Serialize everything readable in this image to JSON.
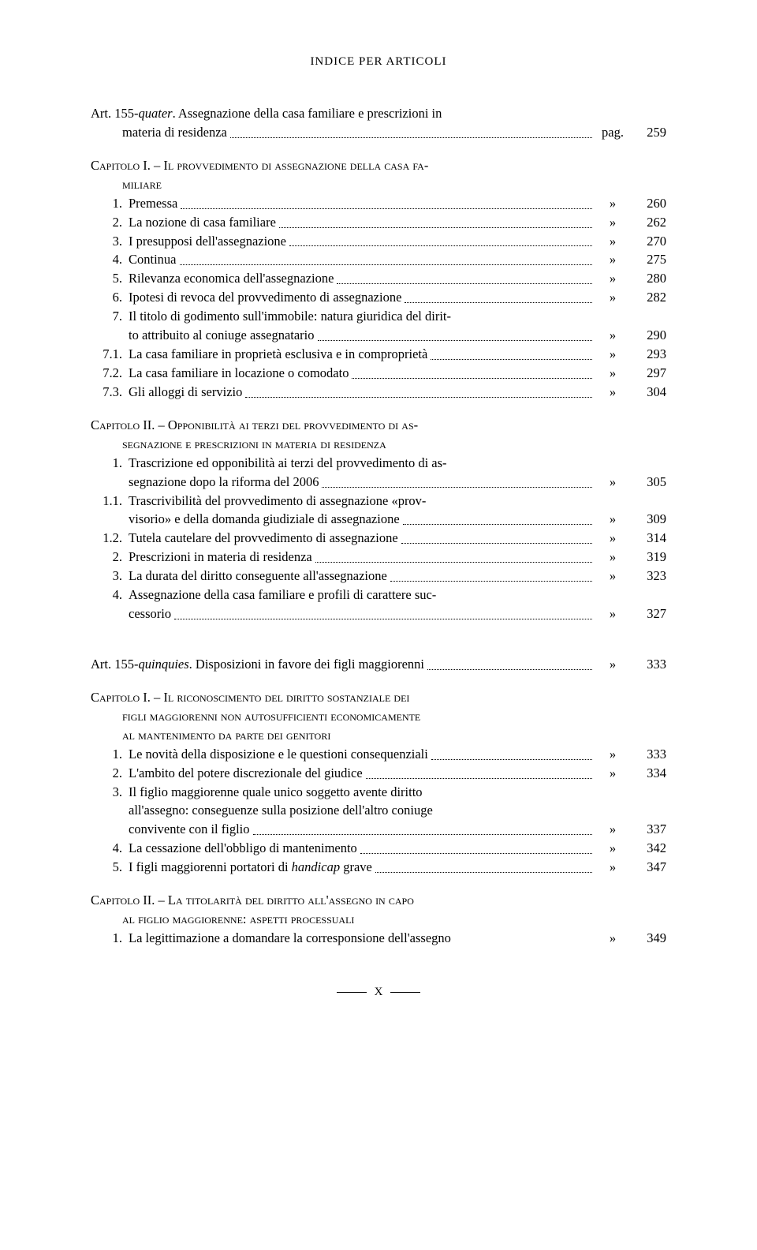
{
  "header": "INDICE PER ARTICOLI",
  "footer": "X",
  "pag_label": "pag.",
  "ditto": "»",
  "art1": {
    "prefix": "Art. 155-",
    "suffix_italic": "quater",
    "rest": ". Assegnazione della casa familiare e prescrizioni in",
    "line2": "materia di residenza",
    "page": "259"
  },
  "cap1": {
    "label": "Capitolo I.",
    "rest_line1": " – Il provvedimento di assegnazione della casa fa-",
    "rest_line2": "miliare",
    "items": [
      {
        "n": "1.",
        "t": "Premessa",
        "p": "260"
      },
      {
        "n": "2.",
        "t": "La nozione di casa familiare",
        "p": "262"
      },
      {
        "n": "3.",
        "t": "I presupposi dell'assegnazione",
        "p": "270"
      },
      {
        "n": "4.",
        "t": "Continua",
        "p": "275"
      },
      {
        "n": "5.",
        "t": "Rilevanza economica dell'assegnazione",
        "p": "280"
      },
      {
        "n": "6.",
        "t": "Ipotesi di revoca del provvedimento di assegnazione",
        "p": "282"
      }
    ],
    "item7": {
      "n": "7.",
      "l1": "Il titolo di godimento sull'immobile: natura giuridica del dirit-",
      "l2": "to attribuito al coniuge assegnatario",
      "p": "290"
    },
    "items2": [
      {
        "n": "7.1.",
        "t": "La casa familiare in proprietà esclusiva e in comproprietà",
        "p": "293"
      },
      {
        "n": "7.2.",
        "t": "La casa familiare in locazione o comodato",
        "p": "297"
      },
      {
        "n": "7.3.",
        "t": "Gli alloggi di servizio",
        "p": "304"
      }
    ]
  },
  "cap2": {
    "label": "Capitolo II.",
    "rest_l1": " – Opponibilità ai terzi del provvedimento di as-",
    "rest_l2": "segnazione e prescrizioni in materia di residenza",
    "item1": {
      "n": "1.",
      "l1": "Trascrizione ed opponibilità ai terzi del provvedimento di as-",
      "l2": "segnazione dopo la riforma del 2006",
      "p": "305"
    },
    "item11": {
      "n": "1.1.",
      "l1": "Trascrivibilità del provvedimento di assegnazione «prov-",
      "l2": "visorio» e della domanda giudiziale di assegnazione",
      "p": "309"
    },
    "items": [
      {
        "n": "1.2.",
        "t": "Tutela cautelare del provvedimento di assegnazione",
        "p": "314"
      },
      {
        "n": "2.",
        "t": "Prescrizioni in materia di residenza",
        "p": "319"
      },
      {
        "n": "3.",
        "t": "La durata del diritto conseguente all'assegnazione",
        "p": "323"
      }
    ],
    "item4": {
      "n": "4.",
      "l1": "Assegnazione della casa familiare e profili di carattere suc-",
      "l2": "cessorio",
      "p": "327"
    }
  },
  "art2": {
    "prefix": "Art. 155-",
    "suffix_italic": "quinquies",
    "rest": ". Disposizioni in favore dei figli maggiorenni",
    "page": "333"
  },
  "cap3": {
    "label": "Capitolo I.",
    "rest_l1": " – Il riconoscimento del diritto sostanziale dei",
    "rest_l2": "figli maggiorenni non autosufficienti economicamente",
    "rest_l3": "al mantenimento da parte dei genitori",
    "items1": [
      {
        "n": "1.",
        "t": "Le novità della disposizione e le questioni consequenziali",
        "p": "333"
      },
      {
        "n": "2.",
        "t": "L'ambito del potere discrezionale del giudice",
        "p": "334"
      }
    ],
    "item3": {
      "n": "3.",
      "l1": "Il figlio maggiorenne quale unico soggetto avente diritto",
      "l2": "all'assegno: conseguenze sulla posizione dell'altro coniuge",
      "l3": "convivente con il figlio",
      "p": "337"
    },
    "items2": [
      {
        "n": "4.",
        "t": "La cessazione dell'obbligo di mantenimento",
        "p": "342"
      }
    ],
    "item5": {
      "n": "5.",
      "t1": "I figli maggiorenni portatori di ",
      "t2_italic": "handicap",
      "t3": " grave",
      "p": "347"
    }
  },
  "cap4": {
    "label": "Capitolo II.",
    "rest_l1": " – La titolarità del diritto all'assegno in capo",
    "rest_l2": "al figlio maggiorenne: aspetti processuali",
    "item1": {
      "n": "1.",
      "t": "La legittimazione a domandare la corresponsione dell'assegno",
      "p": "349"
    }
  }
}
